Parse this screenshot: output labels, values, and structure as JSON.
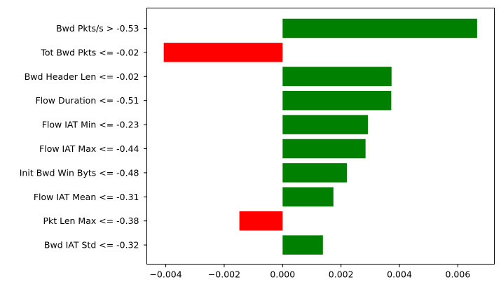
{
  "chart_data": {
    "type": "bar",
    "orientation": "horizontal",
    "title": "",
    "xlabel": "",
    "ylabel": "",
    "categories": [
      "Bwd Pkts/s > -0.53",
      "Tot Bwd Pkts <= -0.02",
      "Bwd Header Len <= -0.02",
      "Flow Duration <= -0.51",
      "Flow IAT Min <= -0.23",
      "Flow IAT Max <= -0.44",
      "Init Bwd Win Byts <= -0.48",
      "Flow IAT Mean <= -0.31",
      "Pkt Len Max <= -0.38",
      "Bwd IAT Std <= -0.32"
    ],
    "values": [
      0.00666,
      -0.00407,
      0.00373,
      0.00372,
      0.00292,
      0.00284,
      0.0022,
      0.00174,
      -0.00148,
      0.00138
    ],
    "xlim": [
      -0.00465,
      0.00725
    ],
    "xticks": [
      -0.004,
      -0.002,
      0.0,
      0.002,
      0.004,
      0.006
    ],
    "xtick_labels": [
      "−0.004",
      "−0.002",
      "0.000",
      "0.002",
      "0.004",
      "0.006"
    ],
    "colors": {
      "positive": "#008000",
      "negative": "#ff0000"
    },
    "grid": false,
    "legend": "none"
  }
}
